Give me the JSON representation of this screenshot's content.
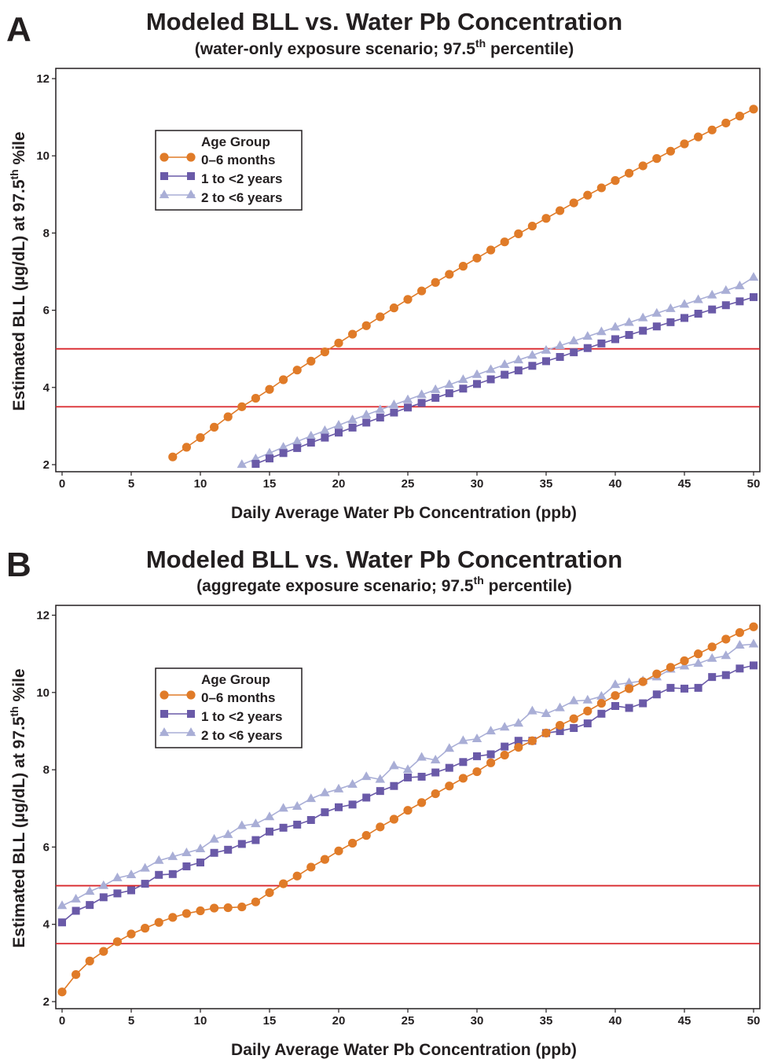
{
  "colors": {
    "orange": "#e07b28",
    "purple": "#6a5aa8",
    "lavender": "#a9aed6",
    "reference_line": "#d9262b",
    "axis": "#231f20"
  },
  "chart_data": [
    {
      "panel": "A",
      "type": "line",
      "title": "Modeled BLL vs. Water Pb Concentration",
      "subtitle_main": "(water-only exposure scenario; 97.5",
      "subtitle_sup": "th",
      "subtitle_tail": " percentile)",
      "xlabel": "Daily Average Water Pb Concentration (ppb)",
      "ylabel_main": "Estimated BLL (µg/dL) at 97.5",
      "ylabel_sup": "th",
      "ylabel_tail": " %ile",
      "xlim": [
        0,
        50
      ],
      "ylim": [
        2,
        12
      ],
      "xticks": [
        0,
        5,
        10,
        15,
        20,
        25,
        30,
        35,
        40,
        45,
        50
      ],
      "yticks": [
        2,
        4,
        6,
        8,
        10,
        12
      ],
      "reference_lines": [
        5,
        3.5
      ],
      "legend_title": "Age Group",
      "legend_position": "upper-left",
      "series": [
        {
          "name": "0–6 months",
          "marker": "circle",
          "color_key": "orange",
          "x": [
            8,
            9,
            10,
            11,
            12,
            13,
            14,
            15,
            16,
            17,
            18,
            19,
            20,
            21,
            22,
            23,
            24,
            25,
            26,
            27,
            28,
            29,
            30,
            31,
            32,
            33,
            34,
            35,
            36,
            37,
            38,
            39,
            40,
            41,
            42,
            43,
            44,
            45,
            46,
            47,
            48,
            49,
            50
          ],
          "y": [
            2.2,
            2.45,
            2.7,
            2.97,
            3.24,
            3.5,
            3.72,
            3.95,
            4.2,
            4.45,
            4.68,
            4.92,
            5.15,
            5.38,
            5.6,
            5.83,
            6.06,
            6.28,
            6.5,
            6.72,
            6.93,
            7.14,
            7.35,
            7.56,
            7.77,
            7.98,
            8.18,
            8.38,
            8.58,
            8.78,
            8.98,
            9.17,
            9.36,
            9.55,
            9.74,
            9.93,
            10.12,
            10.31,
            10.49,
            10.67,
            10.85,
            11.03,
            11.21
          ]
        },
        {
          "name": "1 to <2 years",
          "marker": "square",
          "color_key": "purple",
          "x": [
            14,
            15,
            16,
            17,
            18,
            19,
            20,
            21,
            22,
            23,
            24,
            25,
            26,
            27,
            28,
            29,
            30,
            31,
            32,
            33,
            34,
            35,
            36,
            37,
            38,
            39,
            40,
            41,
            42,
            43,
            44,
            45,
            46,
            47,
            48,
            49,
            50
          ],
          "y": [
            2.02,
            2.16,
            2.3,
            2.43,
            2.57,
            2.7,
            2.83,
            2.96,
            3.09,
            3.22,
            3.35,
            3.48,
            3.6,
            3.73,
            3.85,
            3.97,
            4.09,
            4.21,
            4.33,
            4.44,
            4.56,
            4.68,
            4.79,
            4.91,
            5.02,
            5.14,
            5.25,
            5.36,
            5.47,
            5.58,
            5.69,
            5.8,
            5.91,
            6.02,
            6.13,
            6.23,
            6.34
          ]
        },
        {
          "name": "2 to <6 years",
          "marker": "triangle",
          "color_key": "lavender",
          "x": [
            13,
            14,
            15,
            16,
            17,
            18,
            19,
            20,
            21,
            22,
            23,
            24,
            25,
            26,
            27,
            28,
            29,
            30,
            31,
            32,
            33,
            34,
            35,
            36,
            37,
            38,
            39,
            40,
            41,
            42,
            43,
            44,
            45,
            46,
            47,
            48,
            49,
            50
          ],
          "y": [
            2.0,
            2.15,
            2.3,
            2.45,
            2.6,
            2.74,
            2.88,
            3.02,
            3.16,
            3.29,
            3.42,
            3.55,
            3.68,
            3.81,
            3.94,
            4.07,
            4.2,
            4.33,
            4.46,
            4.59,
            4.71,
            4.83,
            4.96,
            5.08,
            5.2,
            5.32,
            5.44,
            5.56,
            5.68,
            5.8,
            5.92,
            6.04,
            6.15,
            6.27,
            6.39,
            6.51,
            6.63,
            6.85
          ]
        }
      ]
    },
    {
      "panel": "B",
      "type": "line",
      "title": "Modeled BLL vs. Water Pb Concentration",
      "subtitle_main": "(aggregate exposure scenario; 97.5",
      "subtitle_sup": "th",
      "subtitle_tail": " percentile)",
      "xlabel": "Daily Average Water Pb Concentration (ppb)",
      "ylabel_main": "Estimated BLL (µg/dL) at 97.5",
      "ylabel_sup": "th",
      "ylabel_tail": " %ile",
      "xlim": [
        0,
        50
      ],
      "ylim": [
        2,
        12
      ],
      "xticks": [
        0,
        5,
        10,
        15,
        20,
        25,
        30,
        35,
        40,
        45,
        50
      ],
      "yticks": [
        2,
        4,
        6,
        8,
        10,
        12
      ],
      "reference_lines": [
        5,
        3.5
      ],
      "legend_title": "Age Group",
      "legend_position": "upper-left",
      "series": [
        {
          "name": "0–6 months",
          "marker": "circle",
          "color_key": "orange",
          "x": [
            0,
            1,
            2,
            3,
            4,
            5,
            6,
            7,
            8,
            9,
            10,
            11,
            12,
            13,
            14,
            15,
            16,
            17,
            18,
            19,
            20,
            21,
            22,
            23,
            24,
            25,
            26,
            27,
            28,
            29,
            30,
            31,
            32,
            33,
            34,
            35,
            36,
            37,
            38,
            39,
            40,
            41,
            42,
            43,
            44,
            45,
            46,
            47,
            48,
            49,
            50
          ],
          "y": [
            2.25,
            2.7,
            3.05,
            3.3,
            3.55,
            3.75,
            3.9,
            4.05,
            4.18,
            4.28,
            4.35,
            4.42,
            4.43,
            4.45,
            4.58,
            4.82,
            5.05,
            5.25,
            5.48,
            5.68,
            5.9,
            6.1,
            6.3,
            6.52,
            6.72,
            6.95,
            7.15,
            7.38,
            7.58,
            7.78,
            7.95,
            8.18,
            8.38,
            8.58,
            8.75,
            8.95,
            9.15,
            9.32,
            9.52,
            9.72,
            9.92,
            10.1,
            10.28,
            10.48,
            10.65,
            10.82,
            11.0,
            11.18,
            11.38,
            11.55,
            11.7
          ]
        },
        {
          "name": "1 to <2 years",
          "marker": "square",
          "color_key": "purple",
          "x": [
            0,
            1,
            2,
            3,
            4,
            5,
            6,
            7,
            8,
            9,
            10,
            11,
            12,
            13,
            14,
            15,
            16,
            17,
            18,
            19,
            20,
            21,
            22,
            23,
            24,
            25,
            26,
            27,
            28,
            29,
            30,
            31,
            32,
            33,
            34,
            35,
            36,
            37,
            38,
            39,
            40,
            41,
            42,
            43,
            44,
            45,
            46,
            47,
            48,
            49,
            50
          ],
          "y": [
            4.05,
            4.35,
            4.5,
            4.7,
            4.8,
            4.88,
            5.05,
            5.28,
            5.3,
            5.5,
            5.6,
            5.85,
            5.93,
            6.08,
            6.18,
            6.4,
            6.5,
            6.58,
            6.7,
            6.9,
            7.03,
            7.1,
            7.28,
            7.45,
            7.58,
            7.8,
            7.82,
            7.93,
            8.05,
            8.2,
            8.35,
            8.4,
            8.6,
            8.75,
            8.75,
            8.95,
            9.0,
            9.08,
            9.2,
            9.45,
            9.65,
            9.6,
            9.72,
            9.95,
            10.12,
            10.1,
            10.12,
            10.4,
            10.45,
            10.62,
            10.7
          ]
        },
        {
          "name": "2 to <6 years",
          "marker": "triangle",
          "color_key": "lavender",
          "x": [
            0,
            1,
            2,
            3,
            4,
            5,
            6,
            7,
            8,
            9,
            10,
            11,
            12,
            13,
            14,
            15,
            16,
            17,
            18,
            19,
            20,
            21,
            22,
            23,
            24,
            25,
            26,
            27,
            28,
            29,
            30,
            31,
            32,
            33,
            34,
            35,
            36,
            37,
            38,
            39,
            40,
            41,
            42,
            43,
            44,
            45,
            46,
            47,
            48,
            49,
            50
          ],
          "y": [
            4.48,
            4.65,
            4.85,
            5.0,
            5.2,
            5.28,
            5.45,
            5.65,
            5.75,
            5.85,
            5.95,
            6.2,
            6.32,
            6.55,
            6.6,
            6.78,
            7.0,
            7.05,
            7.25,
            7.4,
            7.5,
            7.62,
            7.82,
            7.75,
            8.1,
            8.0,
            8.32,
            8.25,
            8.55,
            8.75,
            8.8,
            9.0,
            9.1,
            9.2,
            9.52,
            9.45,
            9.6,
            9.78,
            9.8,
            9.9,
            10.2,
            10.25,
            10.3,
            10.4,
            10.6,
            10.68,
            10.75,
            10.88,
            10.95,
            11.22,
            11.25
          ]
        }
      ]
    }
  ]
}
